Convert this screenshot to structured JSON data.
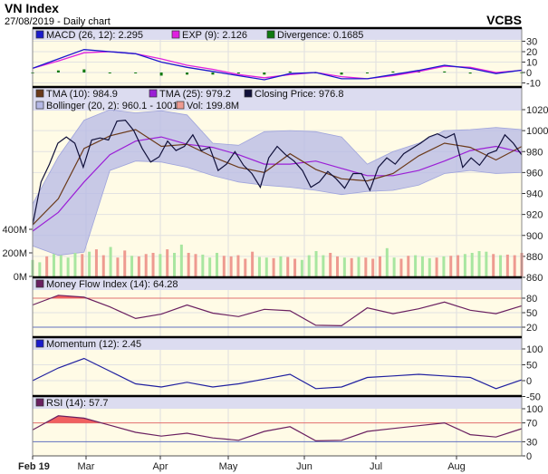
{
  "header": {
    "title": "VN Index",
    "subtitle": "27/08/2019 - Daily chart",
    "brand": "VCBS"
  },
  "colors": {
    "plot_bg": "#fffbe6",
    "legend_bg": "#dcdcf0",
    "macd": "#1a1acc",
    "signal": "#e020e0",
    "divergence": "#107a10",
    "tma10": "#6b3a1a",
    "tma25": "#9b1fd6",
    "close": "#10103a",
    "bollinger": "#b5b8e6",
    "vol_up": "#a8e6a0",
    "vol_down": "#ee9a90",
    "mfi": "#6a2060",
    "momentum": "#2020a0",
    "rsi": "#6a2060",
    "overbought": "#f06060",
    "upper_line": "#e07070",
    "lower_line": "#6070c0"
  },
  "chart_data": [
    {
      "type": "line",
      "panel": "macd",
      "legend": [
        {
          "label": "MACD (26, 12): 2.295",
          "color": "#1a1acc"
        },
        {
          "label": "EXP (9): 2.126",
          "color": "#e020e0"
        },
        {
          "label": "Divergence: 0.1685",
          "color": "#107a10"
        }
      ],
      "ylim": [
        -10,
        30
      ],
      "yticks": [
        "30",
        "20",
        "10",
        "0",
        "-10"
      ],
      "ytick_values": [
        30,
        20,
        10,
        0,
        -10
      ],
      "series": [
        {
          "name": "MACD (26, 12)",
          "values": [
            4,
            13,
            22,
            20,
            18,
            10,
            5,
            1,
            -3,
            -7,
            -1,
            0,
            -6,
            -6,
            -2,
            2,
            7,
            4,
            -1,
            2.295
          ]
        },
        {
          "name": "EXP (9)",
          "values": [
            4,
            11,
            19,
            20,
            18,
            13,
            7,
            3,
            -2,
            -5,
            -2,
            0,
            -4,
            -6,
            -3,
            1,
            6,
            5,
            0,
            2.126
          ]
        },
        {
          "name": "Divergence",
          "values": [
            0,
            2,
            3,
            0,
            0,
            -3,
            -2,
            -2,
            -1,
            -2,
            1,
            0,
            -2,
            0,
            1,
            1,
            1,
            -1,
            -1,
            0.1685
          ]
        }
      ]
    },
    {
      "type": "line",
      "panel": "price",
      "legend": [
        {
          "label": "TMA (10): 984.9",
          "color": "#6b3a1a"
        },
        {
          "label": "TMA (25): 979.2",
          "color": "#9b1fd6"
        },
        {
          "label": "Closing Price: 976.8",
          "color": "#10103a"
        },
        {
          "label": "Bollinger (20, 2): 960.1 - 1001",
          "color": "#b5b8e6"
        },
        {
          "label": "Vol: 199.8M",
          "color": "#ee9a90"
        }
      ],
      "ylim": [
        860,
        1020
      ],
      "yticks": [
        "1020",
        "1000",
        "980",
        "960",
        "940",
        "920",
        "900",
        "880",
        "860"
      ],
      "ytick_values": [
        1020,
        1000,
        980,
        960,
        940,
        920,
        900,
        880,
        860
      ],
      "volume_ticks": [
        "400M",
        "200M",
        "0M"
      ],
      "volume_tick_values": [
        400,
        200,
        0
      ],
      "series": [
        {
          "name": "Closing Price",
          "values": [
            910,
            951,
            968,
            988,
            994,
            988,
            965,
            991,
            993,
            991,
            1009,
            1010,
            1000,
            983,
            970,
            975,
            990,
            981,
            985,
            996,
            981,
            984,
            962,
            968,
            980,
            967,
            959,
            946,
            974,
            985,
            977,
            971,
            962,
            946,
            951,
            961,
            954,
            945,
            959,
            959,
            943,
            965,
            974,
            968,
            978,
            983,
            988,
            994,
            997,
            993,
            997,
            965,
            974,
            967,
            978,
            981,
            996,
            988,
            976.8
          ]
        },
        {
          "name": "TMA (10)",
          "values": [
            910,
            935,
            983,
            995,
            1001,
            985,
            987,
            975,
            965,
            960,
            978,
            963,
            954,
            952,
            959,
            976,
            988,
            984,
            972,
            984.9
          ]
        },
        {
          "name": "TMA (25)",
          "values": [
            904,
            922,
            951,
            977,
            990,
            994,
            987,
            984,
            977,
            968,
            968,
            971,
            964,
            957,
            957,
            962,
            971,
            981,
            985,
            979.2
          ]
        },
        {
          "name": "Bollinger upper",
          "values": [
            930,
            975,
            1010,
            1020,
            1017,
            1019,
            1015,
            988,
            986,
            999,
            1000,
            999,
            994,
            968,
            980,
            988,
            1000,
            1001,
            1003,
            1001
          ]
        },
        {
          "name": "Bollinger lower",
          "values": [
            890,
            881,
            884,
            962,
            971,
            970,
            965,
            957,
            951,
            948,
            946,
            943,
            939,
            942,
            943,
            948,
            959,
            962,
            959,
            960.1
          ]
        },
        {
          "name": "Vol (M)",
          "values": [
            140,
            120,
            170,
            190,
            180,
            160,
            200,
            190,
            210,
            230,
            180,
            250,
            160,
            220,
            175,
            170,
            190,
            200,
            190,
            230,
            200,
            270,
            200,
            190,
            185,
            160,
            200,
            175,
            170,
            180,
            150,
            210,
            165,
            160,
            155,
            170,
            165,
            150,
            140,
            180,
            215,
            180,
            200,
            170,
            160,
            155,
            165,
            160,
            150,
            170,
            240,
            160,
            150,
            175,
            180,
            170,
            155,
            160,
            170,
            175,
            180,
            190,
            200,
            215,
            210,
            190,
            180,
            185,
            180,
            199.8
          ],
          "direction": "ggrggggrgrrgrrgrrrgrggrrgggrrrrrggrgrrggggrrgrgrrrggrrgggrgrrggggrgrrr"
        }
      ]
    },
    {
      "type": "line",
      "panel": "mfi",
      "legend": [
        {
          "label": "Money Flow Index (14): 64.28",
          "color": "#6a2060"
        }
      ],
      "ylim": [
        0,
        100
      ],
      "yticks": [
        "80",
        "50",
        "20"
      ],
      "ytick_values": [
        80,
        50,
        20
      ],
      "series": [
        {
          "name": "Money Flow Index (14)",
          "values": [
            66,
            86,
            82,
            62,
            38,
            47,
            66,
            49,
            42,
            57,
            54,
            24,
            23,
            60,
            48,
            58,
            72,
            55,
            48,
            64.28
          ]
        }
      ]
    },
    {
      "type": "line",
      "panel": "momentum",
      "legend": [
        {
          "label": "Momentum (12): 2.45",
          "color": "#1a1acc"
        }
      ],
      "ylim": [
        -50,
        100
      ],
      "yticks": [
        "100",
        "50",
        "0",
        "-50"
      ],
      "ytick_values": [
        100,
        50,
        0,
        -50
      ],
      "series": [
        {
          "name": "Momentum (12)",
          "values": [
            0,
            40,
            70,
            30,
            -10,
            -20,
            -5,
            -20,
            -10,
            5,
            20,
            -25,
            -20,
            10,
            15,
            20,
            15,
            10,
            -25,
            2.45
          ]
        }
      ]
    },
    {
      "type": "line",
      "panel": "rsi",
      "legend": [
        {
          "label": "RSI (14): 57.7",
          "color": "#6a2060"
        }
      ],
      "ylim": [
        0,
        100
      ],
      "yticks": [
        "100",
        "70",
        "30",
        "0"
      ],
      "ytick_values": [
        100,
        70,
        30,
        0
      ],
      "series": [
        {
          "name": "RSI (14)",
          "values": [
            55,
            85,
            80,
            65,
            50,
            42,
            48,
            38,
            33,
            52,
            62,
            32,
            33,
            52,
            58,
            64,
            70,
            45,
            40,
            57.7
          ]
        }
      ]
    }
  ],
  "xaxis": {
    "ticks": [
      "Feb 19",
      "Mar",
      "Apr",
      "May",
      "Jun",
      "Jul",
      "Aug"
    ]
  }
}
